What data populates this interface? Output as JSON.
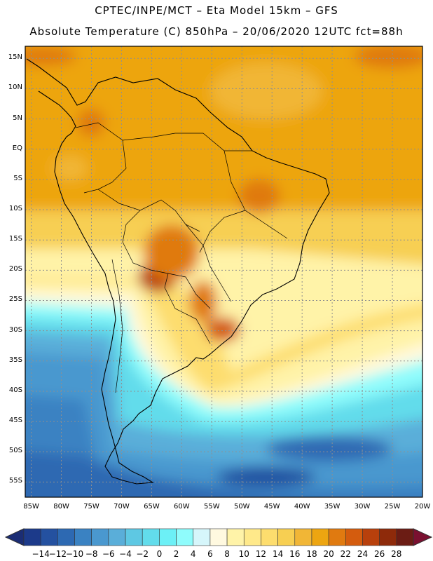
{
  "title": {
    "line1": "CPTEC/INPE/MCT –  Eta Model 15km – GFS",
    "line2": "Absolute Temperature (C) 850hPa – 20/06/2020 12UTC fct=88h"
  },
  "map": {
    "region": "South America",
    "lat_labels": [
      "15N",
      "10N",
      "5N",
      "EQ",
      "5S",
      "10S",
      "15S",
      "20S",
      "25S",
      "30S",
      "35S",
      "40S",
      "45S",
      "50S",
      "55S"
    ],
    "lon_labels": [
      "85W",
      "80W",
      "75W",
      "70W",
      "65W",
      "60W",
      "55W",
      "50W",
      "45W",
      "40W",
      "35W",
      "30W",
      "25W",
      "20W"
    ],
    "lat_range": [
      17,
      -57.5
    ],
    "lon_range": [
      -86,
      -20
    ]
  },
  "colorbar": {
    "labels": [
      "-14",
      "-12",
      "-10",
      "-8",
      "-6",
      "-4",
      "-2",
      "0",
      "2",
      "4",
      "6",
      "8",
      "10",
      "12",
      "14",
      "16",
      "18",
      "20",
      "22",
      "24",
      "26",
      "28"
    ],
    "colors": [
      "#1c3a8a",
      "#2451a0",
      "#2d69b2",
      "#3a82c2",
      "#4a98cf",
      "#5aaed9",
      "#5ec8e3",
      "#62dceb",
      "#6cf0f6",
      "#8ffcfc",
      "#d6f6fb",
      "#fff9e0",
      "#fff3a8",
      "#ffe98a",
      "#fddd6e",
      "#f7cf52",
      "#f1b636",
      "#eda511",
      "#e07a10",
      "#d45c0e",
      "#b8400c",
      "#8e2a0a",
      "#6b1c14"
    ],
    "end_low": "#1b2d74",
    "end_high": "#7a1030"
  }
}
